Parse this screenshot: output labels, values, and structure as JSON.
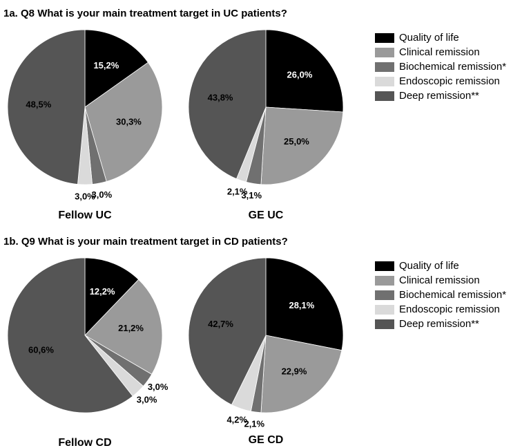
{
  "chart_data": [
    {
      "type": "pie",
      "title": "1a. Q8 What is your main treatment target in UC patients?",
      "categories": [
        "Quality of life",
        "Clinical remission",
        "Biochemical remission*",
        "Endoscopic remission",
        "Deep remission**"
      ],
      "colors": [
        "#000000",
        "#9a9a9a",
        "#707070",
        "#dadada",
        "#555555"
      ],
      "series": [
        {
          "name": "Fellow UC",
          "values": [
            15.2,
            30.3,
            3.0,
            3.0,
            48.5
          ],
          "value_labels": [
            "15,2%",
            "30,3%",
            "3,0%",
            "3,0%",
            "48,5%"
          ]
        },
        {
          "name": "GE UC",
          "values": [
            26.0,
            25.0,
            3.1,
            2.1,
            43.8
          ],
          "value_labels": [
            "26,0%",
            "25,0%",
            "3,1%",
            "2,1%",
            "43,8%"
          ]
        }
      ]
    },
    {
      "type": "pie",
      "title": "1b. Q9 What is your main treatment target in CD patients?",
      "categories": [
        "Quality of life",
        "Clinical remission",
        "Biochemical remission*",
        "Endoscopic remission",
        "Deep remission**"
      ],
      "colors": [
        "#000000",
        "#9a9a9a",
        "#707070",
        "#dadada",
        "#555555"
      ],
      "series": [
        {
          "name": "Fellow CD",
          "values": [
            12.2,
            21.2,
            3.0,
            3.0,
            60.6
          ],
          "value_labels": [
            "12,2%",
            "21,2%",
            "3,0%",
            "3,0%",
            "60,6%"
          ]
        },
        {
          "name": "GE CD",
          "values": [
            28.1,
            22.9,
            2.1,
            4.2,
            42.7
          ],
          "value_labels": [
            "28,1%",
            "22,9%",
            "2,1%",
            "4,2%",
            "42,7%"
          ]
        }
      ]
    }
  ]
}
